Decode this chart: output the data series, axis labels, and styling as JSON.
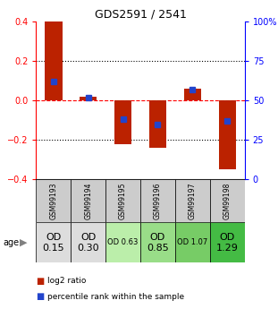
{
  "title": "GDS2591 / 2541",
  "samples": [
    "GSM99193",
    "GSM99194",
    "GSM99195",
    "GSM99196",
    "GSM99197",
    "GSM99198"
  ],
  "log2_ratio": [
    0.4,
    0.02,
    -0.22,
    -0.24,
    0.06,
    -0.35
  ],
  "percentile_rank_pct": [
    62,
    52,
    38,
    35,
    57,
    37
  ],
  "ylim": [
    -0.4,
    0.4
  ],
  "yticks": [
    -0.4,
    -0.2,
    0.0,
    0.2,
    0.4
  ],
  "right_yticks": [
    0,
    25,
    50,
    75,
    100
  ],
  "bar_color": "#bb2200",
  "dot_color": "#2244cc",
  "age_labels": [
    "OD\n0.15",
    "OD\n0.30",
    "OD 0.63",
    "OD\n0.85",
    "OD 1.07",
    "OD\n1.29"
  ],
  "age_fontsize": [
    8,
    8,
    6,
    8,
    6,
    8
  ],
  "age_bg_colors": [
    "#dddddd",
    "#dddddd",
    "#bbeeaa",
    "#99dd88",
    "#77cc66",
    "#44bb44"
  ],
  "sample_bg_color": "#cccccc",
  "legend_red_label": "log2 ratio",
  "legend_blue_label": "percentile rank within the sample"
}
